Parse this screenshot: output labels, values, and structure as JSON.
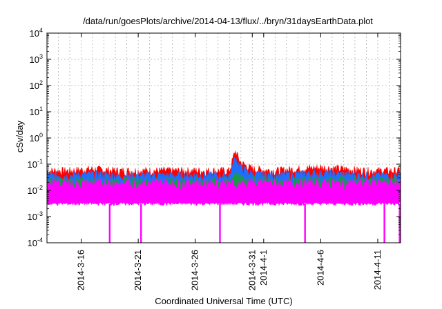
{
  "chart_data": {
    "type": "area",
    "title": "/data/run/goesPlots/archive/2014-04-13/flux/../bryn/31daysEarthData.plot",
    "xlabel": "Coordinated Universal Time (UTC)",
    "ylabel": "cSv/day",
    "yscale": "log",
    "grid": true,
    "legend": "none",
    "xlim": [
      "2014-03-13",
      "2014-04-13"
    ],
    "ylim": [
      0.0001,
      10000
    ],
    "xticks": [
      {
        "date": "2014-03-16",
        "label": "2014-3-16"
      },
      {
        "date": "2014-03-21",
        "label": "2014-3-21"
      },
      {
        "date": "2014-03-26",
        "label": "2014-3-26"
      },
      {
        "date": "2014-03-31",
        "label": "2014-3-31"
      },
      {
        "date": "2014-04-01",
        "label": "2014-4-1"
      },
      {
        "date": "2014-04-06",
        "label": "2014-4-6"
      },
      {
        "date": "2014-04-11",
        "label": "2014-4-11"
      }
    ],
    "yticks": [
      {
        "value": 0.0001,
        "base": "10",
        "exp": "-4"
      },
      {
        "value": 0.001,
        "base": "10",
        "exp": "-3"
      },
      {
        "value": 0.01,
        "base": "10",
        "exp": "-2"
      },
      {
        "value": 0.1,
        "base": "10",
        "exp": "-1"
      },
      {
        "value": 1,
        "base": "10",
        "exp": "0"
      },
      {
        "value": 10,
        "base": "10",
        "exp": "1"
      },
      {
        "value": 100,
        "base": "10",
        "exp": "2"
      },
      {
        "value": 1000,
        "base": "10",
        "exp": "3"
      },
      {
        "value": 10000,
        "base": "10",
        "exp": "4"
      }
    ],
    "series": [
      {
        "color": "#ff0000",
        "x": [
          "2014-03-13",
          "2014-03-15",
          "2014-03-17",
          "2014-03-19",
          "2014-03-21",
          "2014-03-23",
          "2014-03-25",
          "2014-03-27",
          "2014-03-29",
          "2014-03-29T12:00",
          "2014-03-29T18:00",
          "2014-03-30",
          "2014-03-31",
          "2014-04-02",
          "2014-04-04",
          "2014-04-06",
          "2014-04-08",
          "2014-04-10",
          "2014-04-12",
          "2014-04-13"
        ],
        "values": [
          0.06,
          0.06,
          0.07,
          0.06,
          0.06,
          0.06,
          0.06,
          0.06,
          0.06,
          0.35,
          0.2,
          0.12,
          0.07,
          0.06,
          0.07,
          0.08,
          0.07,
          0.06,
          0.06,
          0.06
        ]
      },
      {
        "color": "#1f6fff",
        "x": [
          "2014-03-13",
          "2014-03-15",
          "2014-03-17",
          "2014-03-19",
          "2014-03-21",
          "2014-03-23",
          "2014-03-25",
          "2014-03-27",
          "2014-03-29",
          "2014-03-29T12:00",
          "2014-03-29T18:00",
          "2014-03-30",
          "2014-03-31",
          "2014-04-02",
          "2014-04-04",
          "2014-04-06",
          "2014-04-08",
          "2014-04-10",
          "2014-04-12",
          "2014-04-13"
        ],
        "values": [
          0.04,
          0.04,
          0.045,
          0.04,
          0.04,
          0.04,
          0.04,
          0.04,
          0.04,
          0.2,
          0.12,
          0.08,
          0.045,
          0.04,
          0.045,
          0.05,
          0.045,
          0.04,
          0.04,
          0.04
        ]
      },
      {
        "color": "#1a9a4a",
        "x": [
          "2014-03-13",
          "2014-03-17",
          "2014-03-21",
          "2014-03-25",
          "2014-03-29",
          "2014-03-29T12:00",
          "2014-03-30",
          "2014-04-03",
          "2014-04-07",
          "2014-04-13"
        ],
        "values": [
          0.025,
          0.025,
          0.025,
          0.025,
          0.025,
          0.05,
          0.03,
          0.025,
          0.028,
          0.025
        ]
      },
      {
        "color": "#ff00ff",
        "x": [
          "2014-03-13",
          "2014-03-17",
          "2014-03-21",
          "2014-03-25",
          "2014-03-29",
          "2014-04-02",
          "2014-04-06",
          "2014-04-10",
          "2014-04-13"
        ],
        "values": [
          0.02,
          0.02,
          0.02,
          0.02,
          0.02,
          0.02,
          0.02,
          0.02,
          0.02
        ],
        "floor": 0.003,
        "dropouts": [
          "2014-03-18T12:00",
          "2014-03-21T06:00",
          "2014-03-28T04:00",
          "2014-04-04T15:00",
          "2014-04-11T14:00",
          "2014-04-12T22:00"
        ]
      }
    ]
  }
}
